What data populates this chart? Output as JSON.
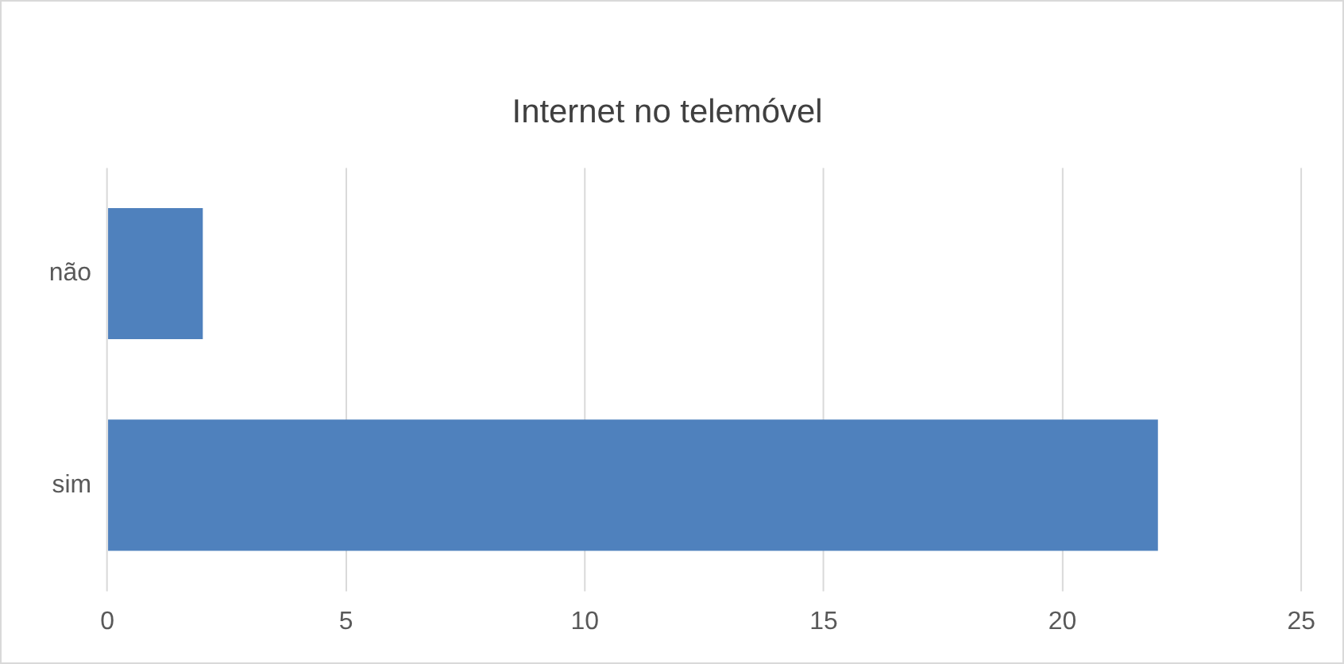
{
  "chart_data": {
    "type": "bar",
    "orientation": "horizontal",
    "title": "Internet no telemóvel",
    "categories": [
      "não",
      "sim"
    ],
    "values": [
      2,
      22
    ],
    "color": "#4f81bd",
    "xlim": [
      0,
      25
    ],
    "xticks": [
      0,
      5,
      10,
      15,
      20,
      25
    ],
    "grid": "x"
  }
}
